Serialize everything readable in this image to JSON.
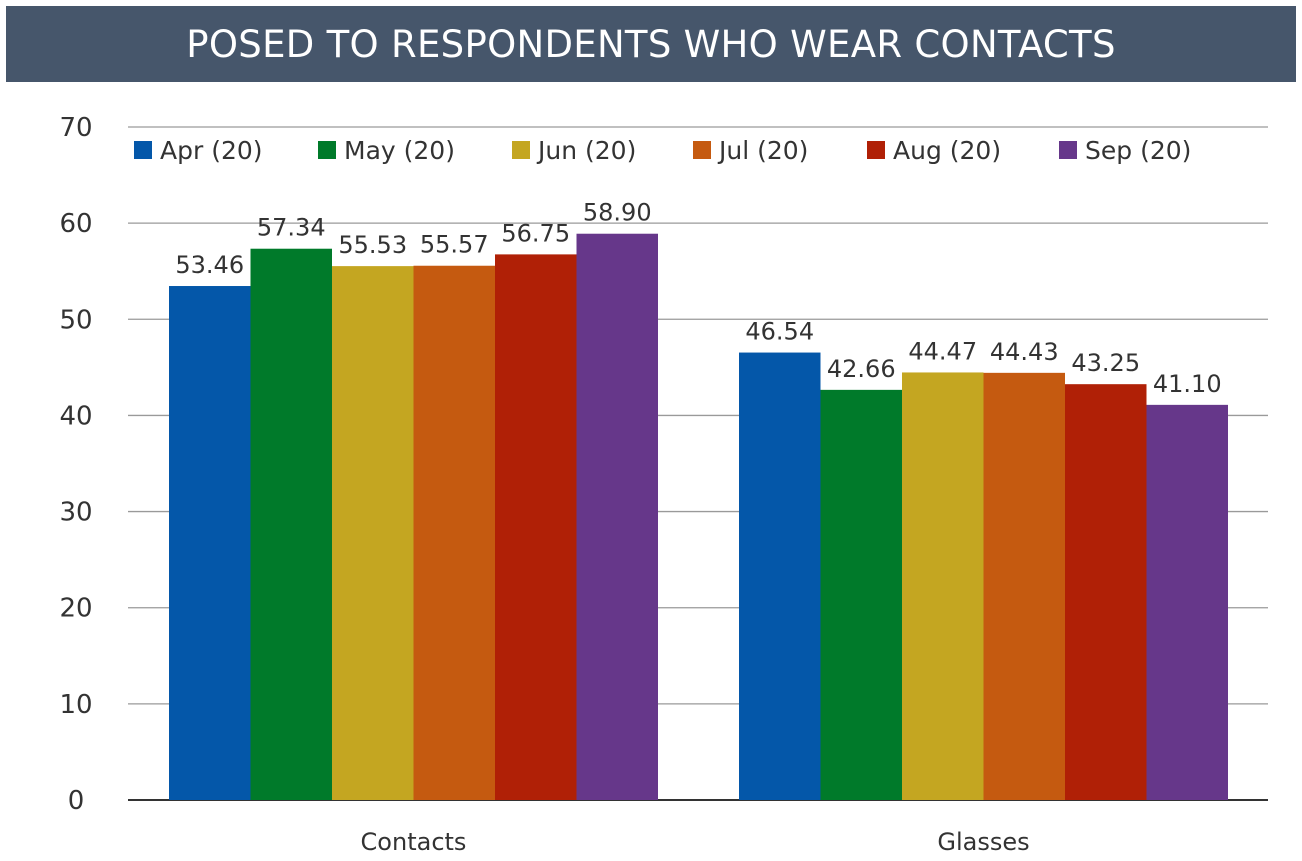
{
  "banner": {
    "title": "POSED TO RESPONDENTS WHO WEAR CONTACTS"
  },
  "chart_data": {
    "type": "bar",
    "categories": [
      "Contacts",
      "Glasses"
    ],
    "series": [
      {
        "name": "Apr (20)",
        "color": "#0457a9",
        "values": [
          53.46,
          46.54
        ],
        "labels": [
          "53.46",
          "46.54"
        ]
      },
      {
        "name": "May (20)",
        "color": "#007a2a",
        "values": [
          57.34,
          42.66
        ],
        "labels": [
          "57.34",
          "42.66"
        ]
      },
      {
        "name": "Jun (20)",
        "color": "#c4a621",
        "values": [
          55.53,
          44.47
        ],
        "labels": [
          "55.53",
          "44.47"
        ]
      },
      {
        "name": "Jul (20)",
        "color": "#c55a10",
        "values": [
          55.57,
          44.43
        ],
        "labels": [
          "55.57",
          "44.43"
        ]
      },
      {
        "name": "Aug (20)",
        "color": "#b02006",
        "values": [
          56.75,
          43.25
        ],
        "labels": [
          "56.75",
          "43.25"
        ]
      },
      {
        "name": "Sep (20)",
        "color": "#66378a",
        "values": [
          58.9,
          41.1
        ],
        "labels": [
          "58.90",
          "41.10"
        ]
      }
    ],
    "ylim": [
      0,
      70
    ],
    "yticks": [
      0,
      10,
      20,
      30,
      40,
      50,
      60,
      70
    ],
    "xlabel": "",
    "ylabel": "",
    "grid": true,
    "legend": "top"
  }
}
